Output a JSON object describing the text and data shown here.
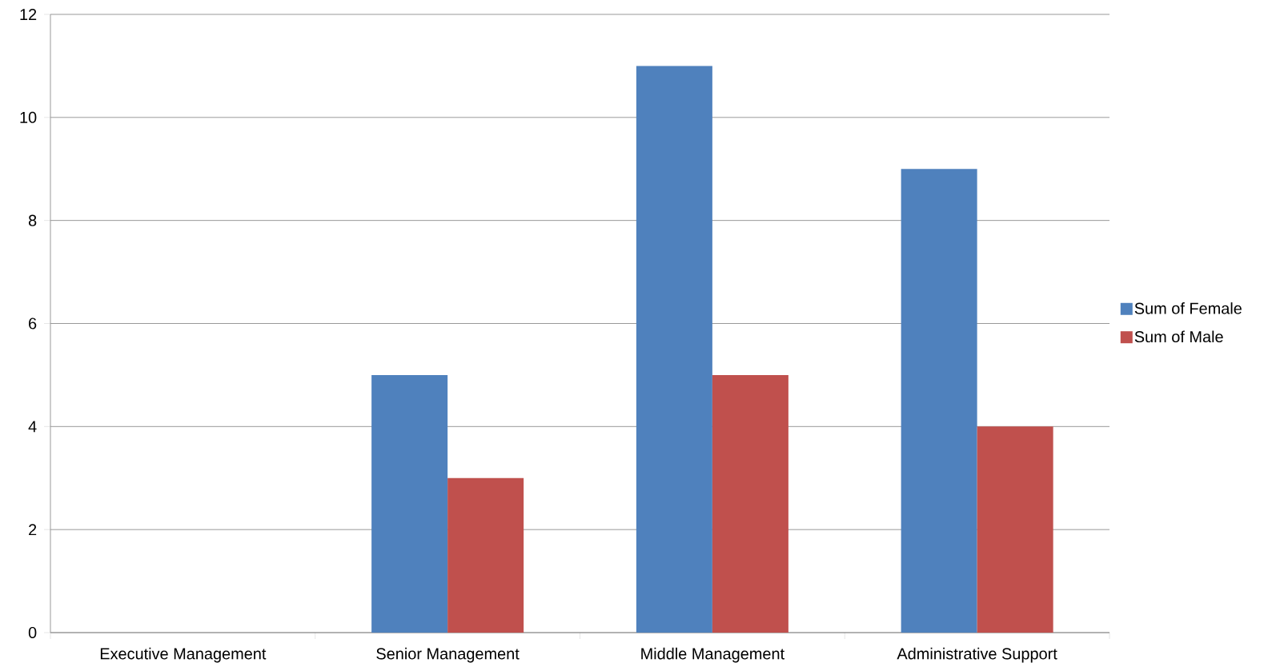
{
  "chart_data": {
    "type": "bar",
    "categories": [
      "Executive Management",
      "Senior Management",
      "Middle Management",
      "Administrative Support"
    ],
    "series": [
      {
        "name": "Sum of Female",
        "color": "#4f81bd",
        "values": [
          null,
          5,
          11,
          9
        ]
      },
      {
        "name": "Sum of Male",
        "color": "#c0504d",
        "values": [
          null,
          3,
          5,
          4
        ]
      }
    ],
    "ylim": [
      0,
      12
    ],
    "yticks": [
      0,
      2,
      4,
      6,
      8,
      10,
      12
    ],
    "grid": "y",
    "legend": "right"
  }
}
